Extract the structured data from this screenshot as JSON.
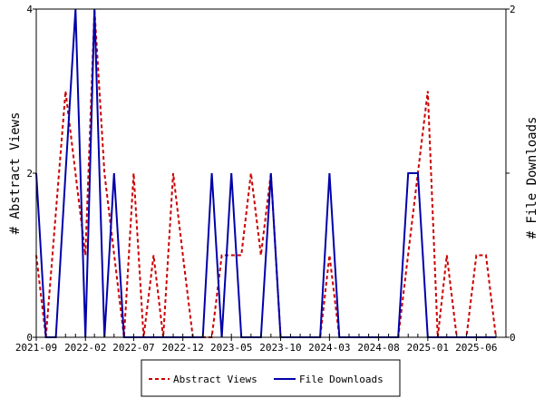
{
  "chart_data": {
    "type": "line",
    "title": "",
    "x_axis": {
      "type": "date",
      "range": [
        "2021-09-01",
        "2025-09-01"
      ],
      "tick_labels": [
        "2021-09",
        "2022-02",
        "2022-07",
        "2022-12",
        "2023-05",
        "2023-10",
        "2024-03",
        "2024-08",
        "2025-01",
        "2025-06"
      ]
    },
    "y_left": {
      "label": "# Abstract Views",
      "range": [
        0,
        4
      ],
      "tick_labels": [
        "0",
        "2",
        "4"
      ]
    },
    "y_right": {
      "label": "# File Downloads",
      "range": [
        0,
        2
      ],
      "tick_labels": [
        "0",
        "1",
        "2"
      ]
    },
    "grid": false,
    "legend_position": "bottom",
    "series": [
      {
        "name": "Abstract Views",
        "axis": "left",
        "color": "#cc0000",
        "style": "dashed",
        "points": [
          [
            "2021-09-01",
            1
          ],
          [
            "2021-10-01",
            0
          ],
          [
            "2021-12-01",
            3
          ],
          [
            "2022-02-01",
            1
          ],
          [
            "2022-03-01",
            4
          ],
          [
            "2022-04-01",
            2
          ],
          [
            "2022-06-01",
            0
          ],
          [
            "2022-07-01",
            2
          ],
          [
            "2022-08-01",
            0
          ],
          [
            "2022-09-01",
            1
          ],
          [
            "2022-10-01",
            0
          ],
          [
            "2022-11-01",
            2
          ],
          [
            "2022-12-01",
            1
          ],
          [
            "2023-01-01",
            0
          ],
          [
            "2023-03-01",
            0
          ],
          [
            "2023-04-01",
            1
          ],
          [
            "2023-05-01",
            1
          ],
          [
            "2023-06-01",
            1
          ],
          [
            "2023-07-01",
            2
          ],
          [
            "2023-08-01",
            1
          ],
          [
            "2023-09-01",
            2
          ],
          [
            "2023-10-01",
            0
          ],
          [
            "2024-02-01",
            0
          ],
          [
            "2024-03-01",
            1
          ],
          [
            "2024-04-01",
            0
          ],
          [
            "2024-10-01",
            0
          ],
          [
            "2024-12-01",
            2
          ],
          [
            "2025-01-01",
            3
          ],
          [
            "2025-02-01",
            0
          ],
          [
            "2025-03-01",
            1
          ],
          [
            "2025-04-01",
            0
          ],
          [
            "2025-05-01",
            0
          ],
          [
            "2025-06-01",
            1
          ],
          [
            "2025-07-01",
            1
          ],
          [
            "2025-08-01",
            0
          ]
        ]
      },
      {
        "name": "File Downloads",
        "axis": "right",
        "color": "#0000aa",
        "style": "solid",
        "points": [
          [
            "2021-09-01",
            1
          ],
          [
            "2021-10-01",
            0
          ],
          [
            "2021-11-01",
            0
          ],
          [
            "2021-12-01",
            1
          ],
          [
            "2022-01-01",
            2
          ],
          [
            "2022-02-01",
            0
          ],
          [
            "2022-03-01",
            2
          ],
          [
            "2022-04-01",
            0
          ],
          [
            "2022-05-01",
            1
          ],
          [
            "2022-06-01",
            0
          ],
          [
            "2023-02-01",
            0
          ],
          [
            "2023-03-01",
            1
          ],
          [
            "2023-04-01",
            0
          ],
          [
            "2023-05-01",
            1
          ],
          [
            "2023-06-01",
            0
          ],
          [
            "2023-08-01",
            0
          ],
          [
            "2023-09-01",
            1
          ],
          [
            "2023-10-01",
            0
          ],
          [
            "2024-02-01",
            0
          ],
          [
            "2024-03-01",
            1
          ],
          [
            "2024-04-01",
            0
          ],
          [
            "2024-10-01",
            0
          ],
          [
            "2024-11-01",
            1
          ],
          [
            "2024-12-01",
            1
          ],
          [
            "2025-01-01",
            0
          ],
          [
            "2025-08-01",
            0
          ]
        ]
      }
    ]
  }
}
